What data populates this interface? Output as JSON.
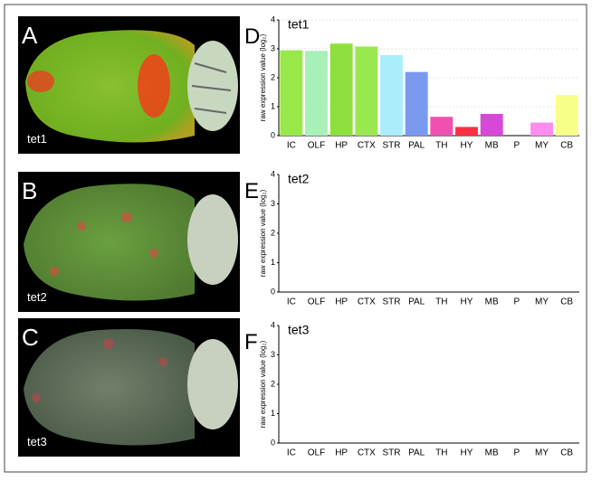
{
  "images": [
    {
      "panel": "A",
      "label": "tet1"
    },
    {
      "panel": "B",
      "label": "tet2"
    },
    {
      "panel": "C",
      "label": "tet3"
    }
  ],
  "chart_data": [
    {
      "type": "bar",
      "panel": "D",
      "title": "tet1",
      "ylabel": "raw expression value (log₂)",
      "categories": [
        "IC",
        "OLF",
        "HP",
        "CTX",
        "STR",
        "PAL",
        "TH",
        "HY",
        "MB",
        "P",
        "MY",
        "CB"
      ],
      "values": [
        2.95,
        2.93,
        3.18,
        3.08,
        2.78,
        2.2,
        0.65,
        0.3,
        0.75,
        null,
        0.45,
        1.4
      ],
      "colors": [
        "#99e84a",
        "#a8f0b8",
        "#8ee03c",
        "#9ae850",
        "#aaeefc",
        "#7a9af0",
        "#f050b0",
        "#ff3040",
        "#d848d8",
        "#ffffff",
        "#ff8cf0",
        "#f8ff88"
      ],
      "ylim": [
        0,
        4
      ],
      "yticks": [
        0,
        1,
        2,
        3,
        4
      ],
      "grid": true
    },
    {
      "type": "bar",
      "panel": "E",
      "title": "tet2",
      "ylabel": "raw expression value (log₂)",
      "categories": [
        "IC",
        "OLF",
        "HP",
        "CTX",
        "STR",
        "PAL",
        "TH",
        "HY",
        "MB",
        "P",
        "MY",
        "CB"
      ],
      "ylim": [
        0,
        4
      ],
      "yticks": [
        0,
        1,
        2,
        3,
        4
      ],
      "grid": false
    },
    {
      "type": "bar",
      "panel": "F",
      "title": "tet3",
      "ylabel": "raw expression value (log₂)",
      "categories": [
        "IC",
        "OLF",
        "HP",
        "CTX",
        "STR",
        "PAL",
        "TH",
        "HY",
        "MB",
        "P",
        "MY",
        "CB"
      ],
      "ylim": [
        0,
        4
      ],
      "yticks": [
        0,
        1,
        2,
        3,
        4
      ],
      "grid": false
    }
  ]
}
